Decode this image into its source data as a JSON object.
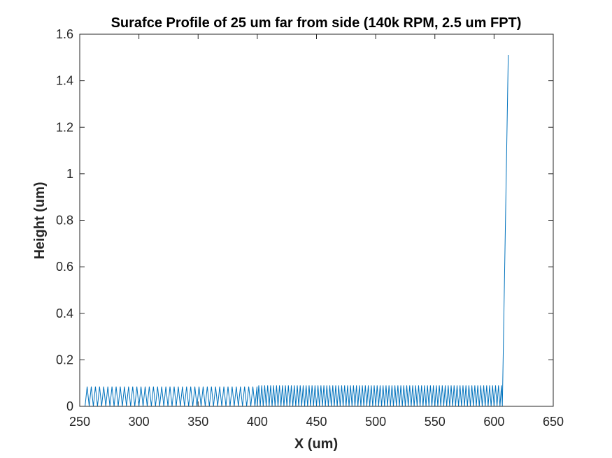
{
  "chart_data": {
    "type": "line",
    "title": "Surafce Profile of 25 um far from side (140k RPM, 2.5 um FPT)",
    "xlabel": "X (um)",
    "ylabel": "Height (um)",
    "xlim": [
      250,
      650
    ],
    "ylim": [
      0,
      1.6
    ],
    "xticks": [
      "250",
      "300",
      "350",
      "400",
      "450",
      "500",
      "550",
      "600",
      "650"
    ],
    "yticks": [
      "0",
      "0.2",
      "0.4",
      "0.6",
      "0.8",
      "1",
      "1.2",
      "1.4",
      "1.6"
    ],
    "grid": false,
    "box": true,
    "series": [
      {
        "color": "#0072BD",
        "segments": [
          {
            "x_start": 254.5,
            "x_end": 400,
            "period": 3.5,
            "peak": 0.085,
            "trough": 0.0
          },
          {
            "x_start": 400,
            "x_end": 607,
            "period": 2.5,
            "peak": 0.09,
            "trough": 0.0
          }
        ],
        "final_rise": {
          "x": [
            607,
            612
          ],
          "y": [
            0.0,
            1.51
          ]
        }
      }
    ]
  }
}
